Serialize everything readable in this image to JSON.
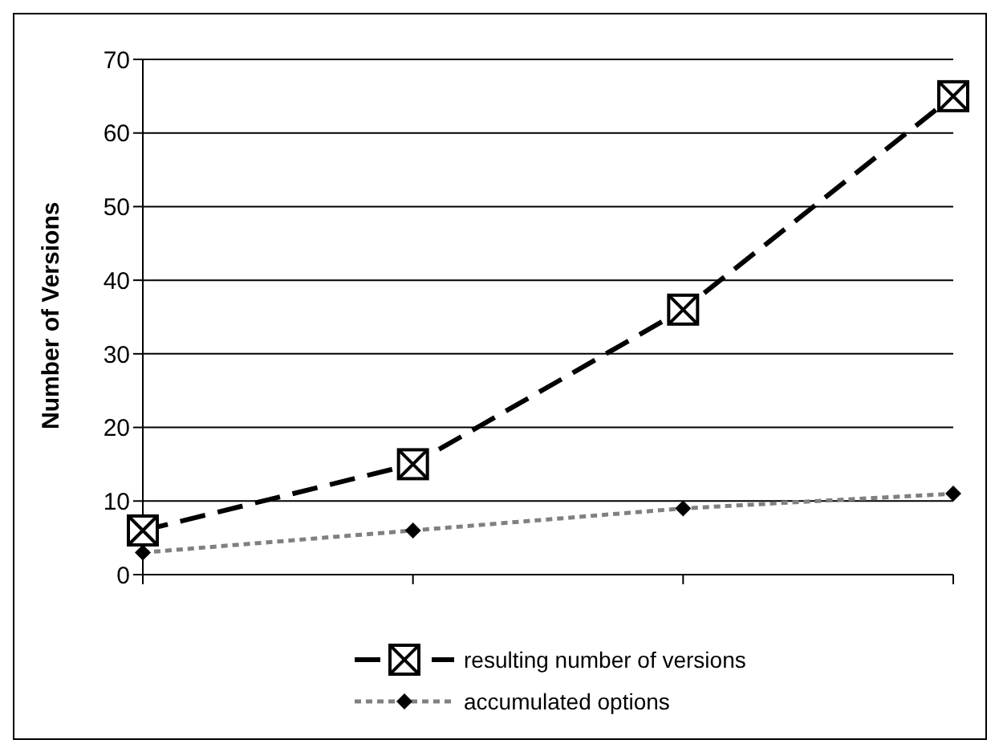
{
  "chart_data": {
    "type": "line",
    "ylabel": "Number of Versions",
    "categories": [
      null,
      null,
      null,
      null
    ],
    "series": [
      {
        "name": "resulting number of versions",
        "color": "#000000",
        "values": [
          6,
          15,
          36,
          65
        ],
        "marker": "square",
        "line_style": "dashed"
      },
      {
        "name": "accumulated options",
        "color": "#808080",
        "values": [
          3,
          6,
          9,
          11
        ],
        "marker": "diamond",
        "line_style": "dotted"
      }
    ],
    "ylim": [
      0,
      70
    ],
    "yticks": [
      0,
      10,
      20,
      30,
      40,
      50,
      60,
      70
    ],
    "grid": "y",
    "legend": "bottom"
  }
}
